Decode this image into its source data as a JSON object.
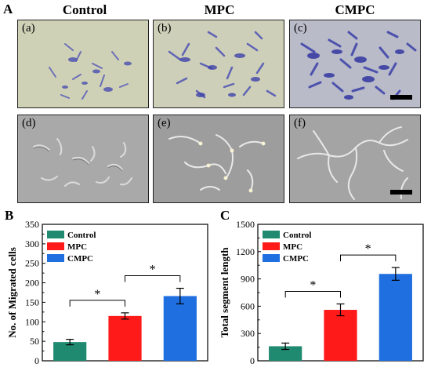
{
  "figure": {
    "panel_letter_a": "A",
    "panel_letter_b": "B",
    "panel_letter_c": "C",
    "columns": [
      "Control",
      "MPC",
      "CMPC"
    ],
    "images_top": [
      "(a)",
      "(b)",
      "(c)"
    ],
    "images_bottom": [
      "(d)",
      "(e)",
      "(f)"
    ]
  },
  "colors": {
    "control": "#1f8a70",
    "mpc": "#ff1a1a",
    "cmpc": "#1f6fe0"
  },
  "chart_data": [
    {
      "type": "bar",
      "panel": "B",
      "categories": [
        "Control",
        "MPC",
        "CMPC"
      ],
      "values": [
        48,
        115,
        166
      ],
      "errors": [
        7,
        8,
        20
      ],
      "ylabel": "No. of Migrated cells",
      "ylim": [
        0,
        350
      ],
      "yticks": [
        "0",
        "50",
        "100",
        "150",
        "200",
        "250",
        "300",
        "350"
      ],
      "legend": [
        "Control",
        "MPC",
        "CMPC"
      ],
      "legend_position": "top-left",
      "significance": [
        {
          "from": "Control",
          "to": "MPC",
          "label": "*"
        },
        {
          "from": "MPC",
          "to": "CMPC",
          "label": "*"
        }
      ]
    },
    {
      "type": "bar",
      "panel": "C",
      "categories": [
        "Control",
        "MPC",
        "CMPC"
      ],
      "values": [
        160,
        560,
        955
      ],
      "errors": [
        35,
        65,
        70
      ],
      "ylabel": "Total segment length",
      "ylim": [
        0,
        1500
      ],
      "yticks": [
        "0",
        "300",
        "600",
        "900",
        "1200",
        "1500"
      ],
      "legend": [
        "Control",
        "MPC",
        "CMPC"
      ],
      "legend_position": "top-left",
      "significance": [
        {
          "from": "Control",
          "to": "MPC",
          "label": "*"
        },
        {
          "from": "MPC",
          "to": "CMPC",
          "label": "*"
        }
      ]
    }
  ]
}
